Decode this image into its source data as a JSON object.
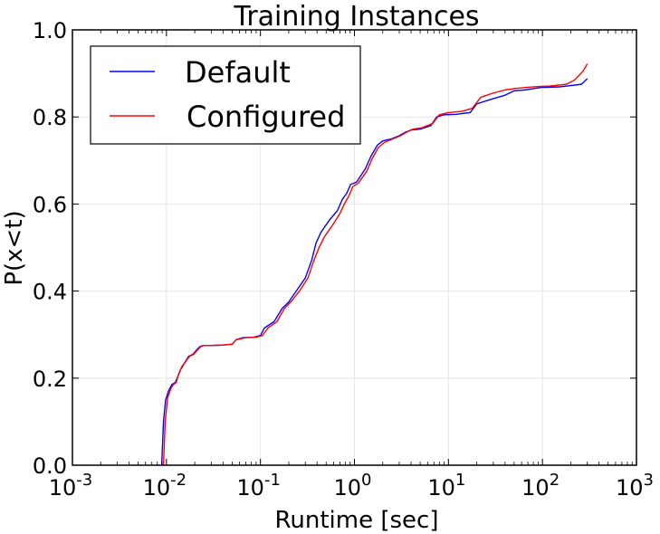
{
  "chart_data": {
    "type": "line",
    "title": "Training Instances",
    "xlabel": "Runtime [sec]",
    "ylabel": "P(x<t)",
    "xscale": "log",
    "xlim": [
      0.001,
      1000
    ],
    "ylim": [
      0.0,
      1.0
    ],
    "x_ticks": [
      {
        "value": 0.001,
        "base": "10",
        "exp": "-3"
      },
      {
        "value": 0.01,
        "base": "10",
        "exp": "-2"
      },
      {
        "value": 0.1,
        "base": "10",
        "exp": "-1"
      },
      {
        "value": 1,
        "base": "10",
        "exp": "0"
      },
      {
        "value": 10,
        "base": "10",
        "exp": "1"
      },
      {
        "value": 100,
        "base": "10",
        "exp": "2"
      },
      {
        "value": 1000,
        "base": "10",
        "exp": "3"
      }
    ],
    "y_ticks": [
      {
        "value": 0.0,
        "label": "0.0"
      },
      {
        "value": 0.2,
        "label": "0.2"
      },
      {
        "value": 0.4,
        "label": "0.4"
      },
      {
        "value": 0.6,
        "label": "0.6"
      },
      {
        "value": 0.8,
        "label": "0.8"
      },
      {
        "value": 1.0,
        "label": "1.0"
      }
    ],
    "grid": true,
    "legend_position": "top-left",
    "series": [
      {
        "name": "Default",
        "color": "#0000ff",
        "points": [
          [
            0.0089,
            0.0
          ],
          [
            0.0093,
            0.1
          ],
          [
            0.0098,
            0.15
          ],
          [
            0.0106,
            0.172
          ],
          [
            0.0114,
            0.185
          ],
          [
            0.0124,
            0.19
          ],
          [
            0.013,
            0.2
          ],
          [
            0.0142,
            0.22
          ],
          [
            0.0156,
            0.235
          ],
          [
            0.0172,
            0.25
          ],
          [
            0.0192,
            0.255
          ],
          [
            0.021,
            0.265
          ],
          [
            0.0225,
            0.272
          ],
          [
            0.0245,
            0.275
          ],
          [
            0.03,
            0.275
          ],
          [
            0.04,
            0.276
          ],
          [
            0.05,
            0.278
          ],
          [
            0.055,
            0.288
          ],
          [
            0.065,
            0.293
          ],
          [
            0.085,
            0.294
          ],
          [
            0.1,
            0.298
          ],
          [
            0.11,
            0.315
          ],
          [
            0.14,
            0.33
          ],
          [
            0.17,
            0.36
          ],
          [
            0.2,
            0.375
          ],
          [
            0.24,
            0.4
          ],
          [
            0.3,
            0.43
          ],
          [
            0.35,
            0.47
          ],
          [
            0.39,
            0.51
          ],
          [
            0.44,
            0.535
          ],
          [
            0.55,
            0.565
          ],
          [
            0.66,
            0.585
          ],
          [
            0.74,
            0.61
          ],
          [
            0.83,
            0.625
          ],
          [
            0.91,
            0.645
          ],
          [
            1.05,
            0.65
          ],
          [
            1.3,
            0.68
          ],
          [
            1.5,
            0.71
          ],
          [
            1.75,
            0.735
          ],
          [
            2.0,
            0.745
          ],
          [
            2.5,
            0.75
          ],
          [
            3.0,
            0.757
          ],
          [
            3.5,
            0.765
          ],
          [
            4.0,
            0.77
          ],
          [
            5.0,
            0.772
          ],
          [
            6.5,
            0.78
          ],
          [
            7.5,
            0.8
          ],
          [
            9.0,
            0.805
          ],
          [
            12,
            0.806
          ],
          [
            17,
            0.81
          ],
          [
            20,
            0.83
          ],
          [
            28,
            0.84
          ],
          [
            40,
            0.85
          ],
          [
            50,
            0.86
          ],
          [
            65,
            0.862
          ],
          [
            80,
            0.865
          ],
          [
            100,
            0.868
          ],
          [
            150,
            0.869
          ],
          [
            200,
            0.872
          ],
          [
            260,
            0.875
          ],
          [
            300,
            0.888
          ]
        ]
      },
      {
        "name": "Configured",
        "color": "#ff0000",
        "points": [
          [
            0.0093,
            0.0
          ],
          [
            0.0097,
            0.1
          ],
          [
            0.0103,
            0.155
          ],
          [
            0.0111,
            0.175
          ],
          [
            0.0118,
            0.185
          ],
          [
            0.0127,
            0.19
          ],
          [
            0.0135,
            0.21
          ],
          [
            0.0147,
            0.228
          ],
          [
            0.016,
            0.238
          ],
          [
            0.0176,
            0.25
          ],
          [
            0.0196,
            0.255
          ],
          [
            0.0215,
            0.265
          ],
          [
            0.023,
            0.272
          ],
          [
            0.025,
            0.275
          ],
          [
            0.03,
            0.275
          ],
          [
            0.04,
            0.276
          ],
          [
            0.05,
            0.278
          ],
          [
            0.055,
            0.288
          ],
          [
            0.07,
            0.293
          ],
          [
            0.09,
            0.294
          ],
          [
            0.105,
            0.298
          ],
          [
            0.12,
            0.315
          ],
          [
            0.15,
            0.33
          ],
          [
            0.18,
            0.36
          ],
          [
            0.21,
            0.375
          ],
          [
            0.26,
            0.4
          ],
          [
            0.32,
            0.43
          ],
          [
            0.37,
            0.47
          ],
          [
            0.42,
            0.5
          ],
          [
            0.48,
            0.525
          ],
          [
            0.6,
            0.555
          ],
          [
            0.7,
            0.578
          ],
          [
            0.78,
            0.6
          ],
          [
            0.88,
            0.62
          ],
          [
            0.96,
            0.64
          ],
          [
            1.1,
            0.648
          ],
          [
            1.35,
            0.675
          ],
          [
            1.55,
            0.705
          ],
          [
            1.8,
            0.73
          ],
          [
            2.1,
            0.742
          ],
          [
            2.6,
            0.75
          ],
          [
            3.1,
            0.757
          ],
          [
            3.6,
            0.765
          ],
          [
            4.2,
            0.772
          ],
          [
            5.2,
            0.775
          ],
          [
            6.8,
            0.785
          ],
          [
            8.0,
            0.805
          ],
          [
            10,
            0.81
          ],
          [
            14,
            0.813
          ],
          [
            18,
            0.82
          ],
          [
            22,
            0.845
          ],
          [
            30,
            0.855
          ],
          [
            40,
            0.862
          ],
          [
            55,
            0.866
          ],
          [
            70,
            0.868
          ],
          [
            90,
            0.87
          ],
          [
            120,
            0.871
          ],
          [
            180,
            0.875
          ],
          [
            220,
            0.885
          ],
          [
            270,
            0.905
          ],
          [
            300,
            0.922
          ]
        ]
      }
    ]
  }
}
